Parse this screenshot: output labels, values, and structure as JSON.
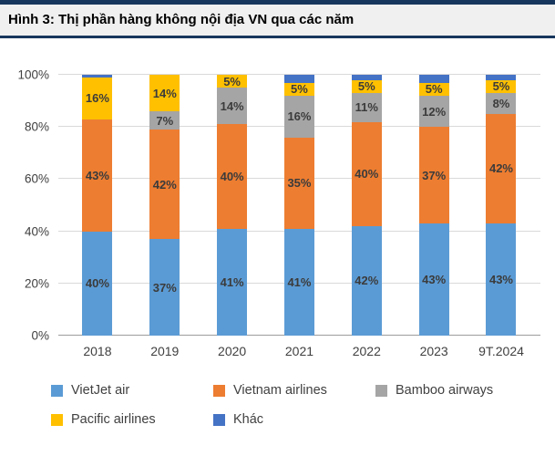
{
  "header": {
    "title": "Hình 3: Thị phần hàng không nội địa VN qua các năm"
  },
  "chart_data": {
    "type": "bar",
    "stacked": true,
    "title": "Hình 3: Thị phần hàng không nội địa VN qua các năm",
    "unit": "%",
    "categories": [
      "2018",
      "2019",
      "2020",
      "2021",
      "2022",
      "2023",
      "9T.2024"
    ],
    "series": [
      {
        "name": "VietJet air",
        "color": "#5B9BD5",
        "values": [
          40,
          37,
          41,
          41,
          42,
          43,
          43
        ]
      },
      {
        "name": "Vietnam airlines",
        "color": "#ED7D31",
        "values": [
          43,
          42,
          40,
          35,
          40,
          37,
          42
        ]
      },
      {
        "name": "Bamboo airways",
        "color": "#A5A5A5",
        "values": [
          0,
          7,
          14,
          16,
          11,
          12,
          8
        ]
      },
      {
        "name": "Pacific airlines",
        "color": "#FFC000",
        "values": [
          16,
          14,
          5,
          5,
          5,
          5,
          5
        ]
      },
      {
        "name": "Khác",
        "color": "#4472C4",
        "values": [
          1,
          0,
          0,
          3,
          2,
          3,
          2
        ]
      }
    ],
    "ylim": [
      0,
      100
    ],
    "yticks": [
      "0%",
      "20%",
      "40%",
      "60%",
      "80%",
      "100%"
    ],
    "grid": true,
    "legend_position": "bottom",
    "label_min_value": 5
  },
  "colors": {
    "header_accent": "#17365D",
    "header_band": "#F0F0F0",
    "grid": "#D9D9D9",
    "axis": "#9C9C9C",
    "text": "#404040"
  }
}
